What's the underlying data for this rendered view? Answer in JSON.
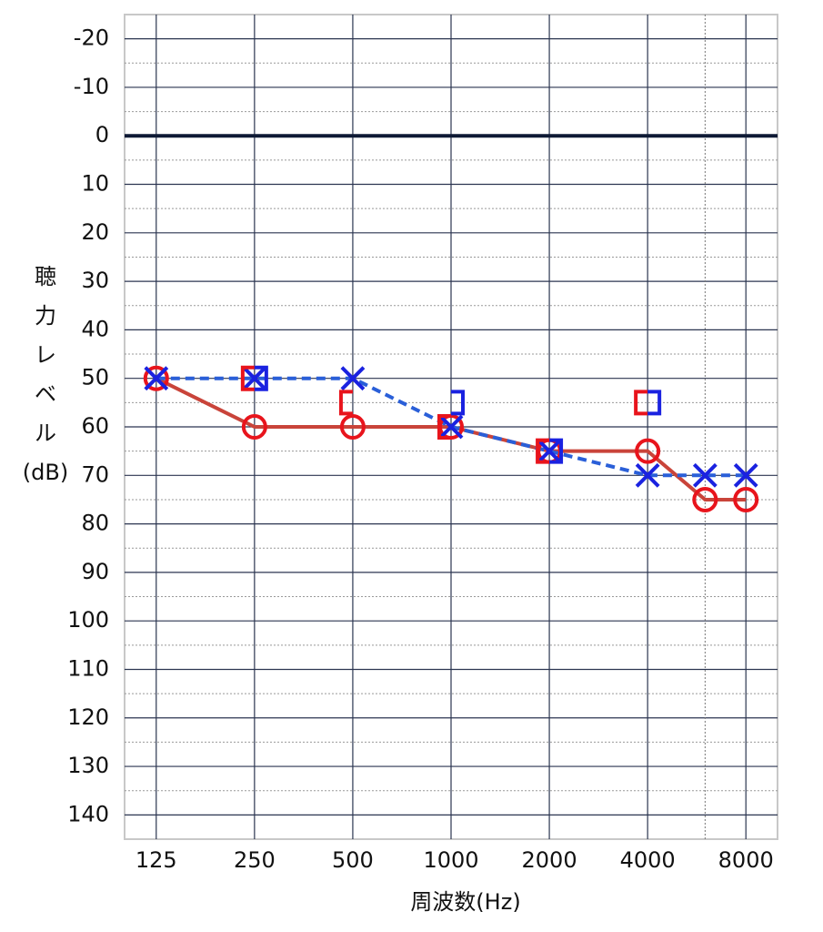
{
  "chart_data": {
    "type": "audiogram",
    "xlabel": "周波数(Hz)",
    "ylabel": "聴力レベル(dB)",
    "x": [
      125,
      250,
      500,
      1000,
      2000,
      4000,
      6000,
      8000
    ],
    "xscale": "log",
    "xlim": [
      100,
      10000
    ],
    "xticks": [
      125,
      250,
      500,
      1000,
      2000,
      4000,
      8000
    ],
    "ylim": [
      -25,
      145
    ],
    "yinverted": true,
    "yticks": [
      -20,
      -10,
      0,
      10,
      20,
      30,
      40,
      50,
      60,
      70,
      80,
      90,
      100,
      110,
      120,
      130,
      140
    ],
    "grid": true,
    "series": [
      {
        "color": "#e8141c",
        "line_color": "#c9443a",
        "line": "solid",
        "marker": "circle",
        "values": [
          50,
          60,
          60,
          60,
          65,
          65,
          75,
          75
        ]
      },
      {
        "color": "#1a22e0",
        "line_color": "#2a5fd8",
        "line": "dashed",
        "marker": "x",
        "values": [
          50,
          50,
          50,
          60,
          65,
          70,
          70,
          70
        ]
      },
      {
        "color": "#e8141c",
        "line": "none",
        "marker": "bracket-left",
        "values": [
          null,
          50,
          55,
          60,
          65,
          55,
          null,
          null
        ]
      },
      {
        "color": "#1a22e0",
        "line": "none",
        "marker": "bracket-right",
        "values": [
          null,
          50,
          null,
          55,
          65,
          55,
          null,
          null
        ]
      }
    ]
  }
}
